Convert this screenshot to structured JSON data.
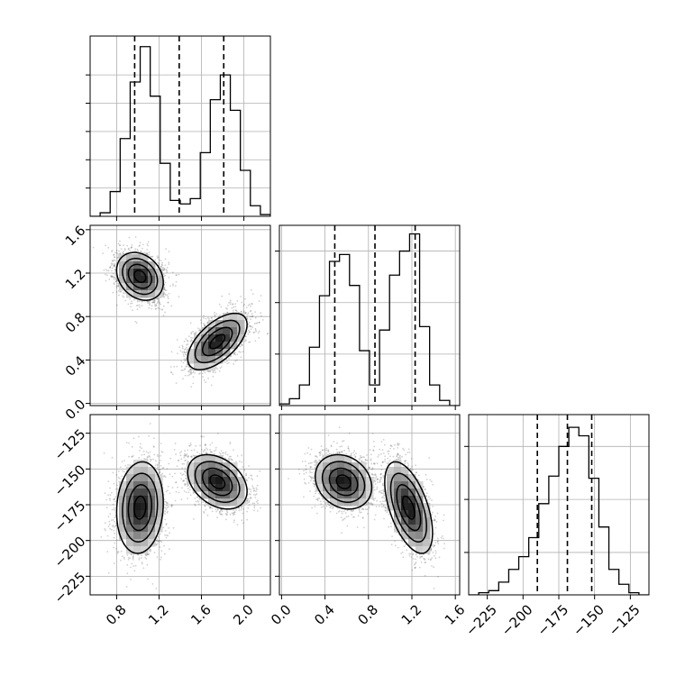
{
  "chart_data": {
    "type": "corner",
    "grid": true,
    "parameters": [
      {
        "index": 0,
        "range": [
          0.55,
          2.25
        ],
        "ticks": [
          0.8,
          1.2,
          1.6,
          2.0
        ],
        "tick_labels": [
          "0.8",
          "1.2",
          "1.6",
          "2.0"
        ]
      },
      {
        "index": 1,
        "range": [
          -0.02,
          1.64
        ],
        "ticks": [
          0.0,
          0.4,
          0.8,
          1.2,
          1.6
        ],
        "tick_labels": [
          "0.0",
          "0.4",
          "0.8",
          "1.2",
          "1.6"
        ]
      },
      {
        "index": 2,
        "range": [
          -238,
          -112
        ],
        "ticks": [
          -225,
          -200,
          -175,
          -150,
          -125
        ],
        "tick_labels": [
          "−225",
          "−200",
          "−175",
          "−150",
          "−125"
        ]
      }
    ],
    "marginals": [
      {
        "param": 0,
        "bin_edges": [
          0.55,
          0.6444,
          0.7389,
          0.8333,
          0.9278,
          1.0222,
          1.1167,
          1.2111,
          1.3056,
          1.4,
          1.4944,
          1.5889,
          1.6833,
          1.7778,
          1.8722,
          1.9667,
          2.0611,
          2.1556,
          2.25
        ],
        "counts": [
          0,
          2,
          14,
          44,
          76,
          96,
          68,
          30,
          9,
          7,
          10,
          36,
          66,
          80,
          60,
          26,
          6,
          1
        ],
        "ylim": [
          0,
          102
        ],
        "ytick_values": [
          16,
          32,
          48,
          64,
          80
        ],
        "quantiles": [
          0.97,
          1.39,
          1.81
        ]
      },
      {
        "param": 1,
        "bin_edges": [
          -0.02,
          0.0722,
          0.1644,
          0.2567,
          0.3489,
          0.4411,
          0.5333,
          0.6256,
          0.7178,
          0.81,
          0.9022,
          0.9944,
          1.0867,
          1.1789,
          1.2711,
          1.3633,
          1.4556,
          1.5478,
          1.64
        ],
        "counts": [
          1,
          4,
          12,
          34,
          64,
          84,
          88,
          70,
          32,
          12,
          44,
          76,
          90,
          100,
          46,
          12,
          3,
          0
        ],
        "ylim": [
          0,
          105
        ],
        "ytick_values": [
          30,
          60,
          90
        ],
        "quantiles": [
          0.49,
          0.86,
          1.23
        ]
      },
      {
        "param": 2,
        "bin_edges": [
          -238,
          -231,
          -224,
          -217,
          -210,
          -203,
          -196,
          -189,
          -182,
          -175,
          -168,
          -161,
          -154,
          -147,
          -140,
          -133,
          -126,
          -119,
          -112
        ],
        "counts": [
          0,
          1,
          2,
          6,
          12,
          18,
          27,
          43,
          56,
          70,
          79,
          75,
          55,
          32,
          12,
          5,
          1,
          0
        ],
        "ylim": [
          0,
          85
        ],
        "ytick_values": [
          20,
          45,
          70
        ],
        "quantiles": [
          -190,
          -169,
          -152
        ]
      }
    ],
    "joints": [
      {
        "x_param": 0,
        "y_param": 1,
        "clusters": [
          {
            "center": [
              1.02,
              1.17
            ],
            "sigma": [
              0.11,
              0.11
            ],
            "rho": -0.25,
            "n": 2400
          },
          {
            "center": [
              1.75,
              0.57
            ],
            "sigma": [
              0.14,
              0.13
            ],
            "rho": 0.6,
            "n": 2400
          }
        ]
      },
      {
        "x_param": 0,
        "y_param": 2,
        "clusters": [
          {
            "center": [
              1.02,
              -177
            ],
            "sigma": [
              0.11,
              16
            ],
            "rho": 0.1,
            "n": 2400
          },
          {
            "center": [
              1.75,
              -159
            ],
            "sigma": [
              0.14,
              9.5
            ],
            "rho": -0.35,
            "n": 2400
          }
        ]
      },
      {
        "x_param": 1,
        "y_param": 2,
        "clusters": [
          {
            "center": [
              0.57,
              -159
            ],
            "sigma": [
              0.13,
              9.5
            ],
            "rho": -0.2,
            "n": 2400
          },
          {
            "center": [
              1.17,
              -177
            ],
            "sigma": [
              0.11,
              16
            ],
            "rho": -0.55,
            "n": 2400
          }
        ]
      }
    ],
    "contour_levels": [
      0.118,
      0.393,
      0.675,
      0.865
    ],
    "colors": {
      "ink": "#000000",
      "grid": "#b0b0b0",
      "scatter": "#555555",
      "density_dark": "#000000"
    }
  }
}
